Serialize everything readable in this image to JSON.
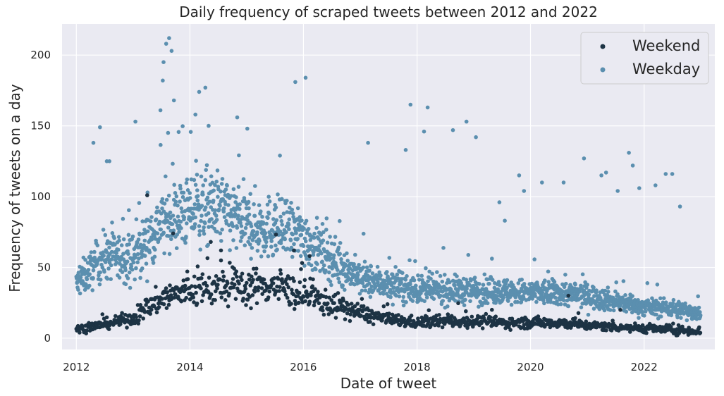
{
  "chart_data": {
    "type": "scatter",
    "title": "Daily frequency of scraped tweets between 2012 and 2022",
    "xlabel": "Date of tweet",
    "ylabel": "Frequency of tweets on a day",
    "xlim": [
      "2011-10-01",
      "2023-04-01"
    ],
    "ylim": [
      -8,
      222
    ],
    "x_ticks": [
      "2012-01-01",
      "2014-01-01",
      "2016-01-01",
      "2018-01-01",
      "2020-01-01",
      "2022-01-01"
    ],
    "x_tick_labels": [
      "2012",
      "2014",
      "2016",
      "2018",
      "2020",
      "2022"
    ],
    "y_ticks": [
      0,
      50,
      100,
      150,
      200
    ],
    "y_tick_labels": [
      "0",
      "50",
      "100",
      "150",
      "200"
    ],
    "grid": true,
    "background": "#EAEAF2",
    "legend_position": "top-right",
    "series": [
      {
        "name": "Weekend",
        "color": "#1D3344",
        "trend": [
          [
            "2012-01-01",
            6
          ],
          [
            "2012-07-01",
            10
          ],
          [
            "2013-01-01",
            14
          ],
          [
            "2013-07-01",
            28
          ],
          [
            "2014-01-01",
            34
          ],
          [
            "2014-07-01",
            36
          ],
          [
            "2015-01-01",
            36
          ],
          [
            "2015-07-01",
            38
          ],
          [
            "2016-01-01",
            30
          ],
          [
            "2016-07-01",
            24
          ],
          [
            "2017-01-01",
            18
          ],
          [
            "2017-07-01",
            13
          ],
          [
            "2018-01-01",
            11
          ],
          [
            "2018-07-01",
            12
          ],
          [
            "2019-01-01",
            12
          ],
          [
            "2019-07-01",
            11
          ],
          [
            "2020-01-01",
            11
          ],
          [
            "2020-07-01",
            11
          ],
          [
            "2021-01-01",
            9
          ],
          [
            "2021-07-01",
            8
          ],
          [
            "2022-01-01",
            7
          ],
          [
            "2022-07-01",
            6
          ],
          [
            "2022-12-31",
            5
          ]
        ],
        "outliers": [
          [
            "2013-04-01",
            101
          ],
          [
            "2013-09-15",
            74
          ],
          [
            "2014-05-15",
            68
          ],
          [
            "2014-07-20",
            62
          ],
          [
            "2015-11-01",
            62
          ],
          [
            "2016-02-10",
            58
          ],
          [
            "2020-09-01",
            30
          ],
          [
            "2021-08-01",
            20
          ]
        ]
      },
      {
        "name": "Weekday",
        "color": "#5B8FAF",
        "trend": [
          [
            "2012-01-01",
            38
          ],
          [
            "2012-07-01",
            58
          ],
          [
            "2013-01-01",
            56
          ],
          [
            "2013-07-01",
            82
          ],
          [
            "2014-01-01",
            90
          ],
          [
            "2014-07-01",
            92
          ],
          [
            "2015-01-01",
            80
          ],
          [
            "2015-07-01",
            78
          ],
          [
            "2016-01-01",
            72
          ],
          [
            "2016-07-01",
            56
          ],
          [
            "2017-01-01",
            42
          ],
          [
            "2017-07-01",
            38
          ],
          [
            "2018-01-01",
            34
          ],
          [
            "2018-07-01",
            34
          ],
          [
            "2019-01-01",
            34
          ],
          [
            "2019-07-01",
            33
          ],
          [
            "2020-01-01",
            32
          ],
          [
            "2020-07-01",
            32
          ],
          [
            "2021-01-01",
            30
          ],
          [
            "2021-07-01",
            26
          ],
          [
            "2022-01-01",
            22
          ],
          [
            "2022-07-01",
            21
          ],
          [
            "2022-12-31",
            18
          ]
        ],
        "outliers": [
          [
            "2012-04-20",
            138
          ],
          [
            "2012-06-01",
            149
          ],
          [
            "2012-07-15",
            125
          ],
          [
            "2012-08-01",
            125
          ],
          [
            "2013-01-15",
            153
          ],
          [
            "2013-08-01",
            208
          ],
          [
            "2013-08-20",
            212
          ],
          [
            "2013-09-05",
            203
          ],
          [
            "2013-07-15",
            195
          ],
          [
            "2013-07-10",
            182
          ],
          [
            "2013-06-25",
            161
          ],
          [
            "2013-09-20",
            168
          ],
          [
            "2014-02-05",
            158
          ],
          [
            "2014-03-01",
            174
          ],
          [
            "2014-04-10",
            177
          ],
          [
            "2014-05-01",
            150
          ],
          [
            "2014-11-01",
            156
          ],
          [
            "2015-01-05",
            148
          ],
          [
            "2015-11-10",
            181
          ],
          [
            "2016-01-15",
            184
          ],
          [
            "2017-02-20",
            138
          ],
          [
            "2017-10-20",
            133
          ],
          [
            "2017-11-20",
            165
          ],
          [
            "2018-02-15",
            146
          ],
          [
            "2018-03-10",
            163
          ],
          [
            "2018-08-20",
            147
          ],
          [
            "2018-11-15",
            153
          ],
          [
            "2019-01-15",
            142
          ],
          [
            "2019-06-15",
            96
          ],
          [
            "2019-07-20",
            83
          ],
          [
            "2019-10-20",
            115
          ],
          [
            "2019-11-20",
            104
          ],
          [
            "2020-03-15",
            110
          ],
          [
            "2020-08-01",
            110
          ],
          [
            "2020-12-10",
            127
          ],
          [
            "2021-04-01",
            115
          ],
          [
            "2021-05-01",
            117
          ],
          [
            "2021-07-15",
            104
          ],
          [
            "2021-09-25",
            131
          ],
          [
            "2021-10-20",
            122
          ],
          [
            "2021-12-01",
            106
          ],
          [
            "2022-03-15",
            108
          ],
          [
            "2022-05-20",
            116
          ],
          [
            "2022-07-01",
            116
          ],
          [
            "2022-08-20",
            93
          ]
        ]
      }
    ]
  }
}
